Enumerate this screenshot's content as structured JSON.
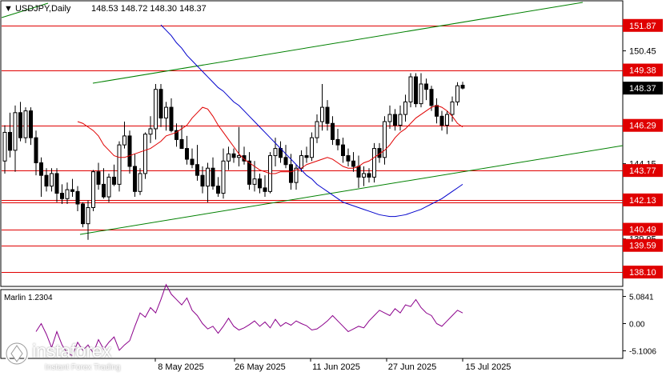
{
  "header": {
    "symbol": "USDJPY,Daily",
    "ohlc": "148.53 148.72 148.30 148.37"
  },
  "indicator": {
    "label": "Marlin 1.2304"
  },
  "price_axis_labels": [
    "151.87",
    "150.45",
    "149.38",
    "148.37",
    "146.29",
    "144.15",
    "143.77",
    "142.13",
    "140.49",
    "139.95",
    "139.59",
    "138.10"
  ],
  "indicator_axis_labels": [
    "5.0841",
    "0.00",
    "-5.1006"
  ],
  "time_axis_labels": [
    "8 May 2025",
    "26 May 2025",
    "11 Jun 2025",
    "27 Jun 2025",
    "15 Jul 2025"
  ],
  "logo": {
    "name": "instaforex",
    "tagline": "Instant Forex Trading"
  },
  "colors": {
    "levels": "#e00000",
    "channel": "#008000",
    "ma_fast": "#e00000",
    "ma_slow": "#0000cc",
    "oscillator": "#8b008b",
    "bull": "#ffffff",
    "bear": "#000000",
    "current_price_box": "#000000"
  },
  "chart_data": {
    "type": "candlestick",
    "symbol": "USDJPY",
    "timeframe": "Daily",
    "y_range": [
      137.3,
      153.2
    ],
    "horizontal_levels": [
      151.87,
      149.38,
      146.29,
      143.77,
      142.13,
      142.0,
      140.49,
      139.59,
      138.1
    ],
    "current_price": 148.37,
    "candles": [
      [
        144.3,
        146.3,
        143.6,
        145.9
      ],
      [
        145.9,
        147.0,
        144.5,
        144.9
      ],
      [
        144.9,
        147.4,
        143.7,
        147.0
      ],
      [
        147.0,
        147.6,
        145.4,
        145.6
      ],
      [
        145.6,
        147.3,
        145.3,
        147.1
      ],
      [
        147.1,
        147.3,
        145.2,
        145.6
      ],
      [
        145.6,
        146.0,
        143.5,
        144.2
      ],
      [
        144.2,
        144.5,
        142.3,
        143.5
      ],
      [
        143.5,
        143.9,
        142.6,
        142.9
      ],
      [
        142.9,
        143.9,
        142.6,
        143.6
      ],
      [
        143.6,
        143.9,
        142.0,
        142.5
      ],
      [
        142.5,
        143.0,
        141.9,
        142.2
      ],
      [
        142.2,
        143.1,
        141.9,
        142.7
      ],
      [
        142.7,
        143.3,
        142.3,
        142.6
      ],
      [
        142.6,
        142.9,
        141.5,
        141.9
      ],
      [
        141.9,
        142.0,
        140.6,
        140.8
      ],
      [
        140.8,
        142.1,
        139.9,
        141.7
      ],
      [
        141.7,
        143.8,
        141.5,
        143.7
      ],
      [
        143.7,
        144.2,
        142.7,
        143.0
      ],
      [
        143.0,
        143.9,
        142.2,
        142.3
      ],
      [
        142.3,
        143.6,
        142.0,
        143.4
      ],
      [
        143.4,
        144.1,
        142.9,
        143.0
      ],
      [
        143.0,
        145.4,
        142.6,
        145.2
      ],
      [
        145.2,
        146.5,
        145.0,
        145.7
      ],
      [
        145.7,
        146.0,
        143.6,
        144.0
      ],
      [
        144.0,
        144.7,
        142.3,
        142.6
      ],
      [
        142.6,
        143.9,
        142.4,
        143.6
      ],
      [
        143.6,
        145.9,
        143.3,
        145.8
      ],
      [
        145.8,
        146.8,
        145.3,
        146.1
      ],
      [
        146.1,
        148.6,
        145.5,
        148.3
      ],
      [
        148.3,
        148.6,
        146.2,
        146.7
      ],
      [
        146.7,
        147.6,
        146.0,
        147.3
      ],
      [
        147.3,
        147.8,
        145.9,
        146.0
      ],
      [
        146.0,
        146.4,
        145.1,
        145.5
      ],
      [
        145.5,
        146.3,
        145.0,
        145.0
      ],
      [
        145.0,
        145.7,
        144.1,
        144.4
      ],
      [
        144.4,
        145.0,
        143.9,
        144.1
      ],
      [
        144.1,
        145.2,
        143.2,
        143.5
      ],
      [
        143.5,
        144.0,
        142.5,
        142.9
      ],
      [
        142.9,
        144.2,
        142.0,
        143.9
      ],
      [
        143.9,
        144.5,
        142.7,
        142.9
      ],
      [
        142.9,
        143.4,
        142.3,
        142.5
      ],
      [
        142.5,
        145.0,
        142.2,
        144.3
      ],
      [
        144.3,
        145.1,
        143.8,
        144.7
      ],
      [
        144.7,
        145.0,
        144.2,
        144.5
      ],
      [
        144.5,
        146.2,
        144.0,
        144.6
      ],
      [
        144.6,
        145.1,
        144.1,
        144.3
      ],
      [
        144.3,
        144.8,
        142.7,
        143.0
      ],
      [
        143.0,
        144.3,
        142.6,
        143.3
      ],
      [
        143.3,
        143.6,
        142.5,
        142.8
      ],
      [
        142.8,
        143.5,
        142.3,
        142.6
      ],
      [
        142.6,
        144.8,
        142.5,
        144.6
      ],
      [
        144.6,
        145.6,
        144.0,
        145.0
      ],
      [
        145.0,
        145.4,
        144.2,
        144.5
      ],
      [
        144.5,
        145.2,
        143.9,
        144.1
      ],
      [
        144.1,
        144.7,
        142.7,
        143.1
      ],
      [
        143.1,
        144.1,
        142.7,
        143.9
      ],
      [
        143.9,
        144.9,
        143.7,
        144.6
      ],
      [
        144.6,
        145.1,
        144.2,
        144.5
      ],
      [
        144.5,
        145.9,
        144.3,
        145.6
      ],
      [
        145.6,
        146.9,
        145.3,
        146.5
      ],
      [
        146.5,
        148.6,
        146.0,
        147.3
      ],
      [
        147.3,
        147.7,
        146.0,
        146.4
      ],
      [
        146.4,
        146.8,
        145.2,
        145.5
      ],
      [
        145.5,
        146.1,
        144.9,
        145.2
      ],
      [
        145.2,
        145.6,
        144.2,
        144.6
      ],
      [
        144.6,
        145.0,
        144.0,
        144.3
      ],
      [
        144.3,
        144.8,
        143.7,
        144.0
      ],
      [
        144.0,
        144.6,
        142.8,
        143.4
      ],
      [
        143.4,
        144.0,
        142.9,
        143.6
      ],
      [
        143.6,
        143.9,
        143.1,
        143.4
      ],
      [
        143.4,
        145.3,
        143.1,
        145.0
      ],
      [
        145.0,
        145.3,
        144.2,
        144.5
      ],
      [
        144.5,
        146.8,
        144.1,
        146.5
      ],
      [
        146.5,
        147.4,
        146.1,
        146.9
      ],
      [
        146.9,
        147.2,
        146.0,
        146.3
      ],
      [
        146.3,
        147.4,
        146.0,
        146.9
      ],
      [
        146.9,
        148.0,
        146.5,
        147.6
      ],
      [
        147.6,
        149.2,
        147.3,
        149.0
      ],
      [
        149.0,
        149.2,
        147.3,
        147.5
      ],
      [
        147.5,
        149.2,
        147.3,
        148.6
      ],
      [
        148.6,
        148.9,
        147.7,
        148.3
      ],
      [
        148.3,
        148.5,
        147.1,
        147.4
      ],
      [
        147.4,
        147.8,
        146.4,
        146.8
      ],
      [
        146.8,
        147.1,
        146.0,
        146.3
      ],
      [
        146.3,
        147.1,
        145.8,
        146.9
      ],
      [
        146.9,
        147.9,
        146.5,
        147.6
      ],
      [
        147.6,
        148.7,
        147.4,
        148.5
      ],
      [
        148.53,
        148.72,
        148.3,
        148.37
      ]
    ],
    "ma_fast": [
      146.5,
      146.4,
      146.2,
      146.0,
      145.7,
      145.2,
      144.9,
      144.6,
      144.5,
      144.5,
      144.6,
      144.7,
      144.8,
      144.9,
      145.0,
      145.2,
      145.4,
      145.7,
      145.8,
      145.9,
      146.1,
      146.3,
      146.7,
      147.0,
      147.3,
      147.2,
      146.8,
      146.3,
      145.9,
      145.5,
      145.1,
      144.7,
      144.4,
      144.2,
      144.0,
      143.8,
      143.7,
      143.6,
      143.6,
      143.7,
      143.7,
      143.7,
      143.8,
      143.9,
      144.1,
      144.2,
      144.3,
      144.4,
      144.5,
      144.4,
      144.2,
      144.0,
      143.9,
      143.9,
      144.0,
      144.2,
      144.3,
      144.5,
      144.7,
      144.9,
      145.2,
      145.6,
      145.9,
      146.1,
      146.4,
      146.7,
      146.9,
      147.1,
      147.3,
      147.4,
      147.3,
      147.1,
      146.8,
      146.4,
      146.2
    ],
    "ma_slow": [
      151.9,
      151.6,
      151.3,
      150.9,
      150.6,
      150.2,
      149.9,
      149.6,
      149.3,
      149.0,
      148.7,
      148.4,
      148.2,
      147.9,
      147.6,
      147.4,
      147.1,
      146.8,
      146.5,
      146.2,
      145.9,
      145.6,
      145.3,
      145.0,
      144.7,
      144.4,
      144.1,
      143.8,
      143.5,
      143.3,
      143.0,
      142.8,
      142.6,
      142.4,
      142.2,
      142.0,
      141.9,
      141.8,
      141.7,
      141.6,
      141.5,
      141.4,
      141.3,
      141.25,
      141.2,
      141.2,
      141.25,
      141.3,
      141.4,
      141.5,
      141.6,
      141.75,
      141.9,
      142.05,
      142.2,
      142.4,
      142.6,
      142.8,
      143.0
    ],
    "channel": {
      "upper": [
        [
          116,
          104
        ],
        [
          728,
          3
        ]
      ],
      "lower": [
        [
          100,
          293
        ],
        [
          778,
          182
        ]
      ],
      "extra": [
        [
          2,
          22
        ],
        [
          60,
          4
        ]
      ]
    },
    "oscillator": {
      "name": "Marlin",
      "value": 1.2304,
      "ylim": [
        -5.1006,
        5.0841
      ],
      "values": [
        -1.5,
        0.0,
        -2.0,
        -4.5,
        -1.5,
        -4.0,
        -5.5,
        -6.0,
        -3.5,
        -5.0,
        -4.0,
        -5.5,
        -3.0,
        -4.8,
        -3.5,
        -2.5,
        -5.0,
        -4.0,
        -3.2,
        -0.5,
        2.0,
        1.2,
        3.0,
        2.0,
        4.5,
        7.3,
        5.5,
        4.5,
        3.5,
        4.8,
        2.5,
        1.5,
        0.0,
        -1.0,
        -0.5,
        -1.8,
        -0.5,
        1.0,
        -0.5,
        -1.2,
        -0.8,
        -0.2,
        0.5,
        -0.5,
        0.3,
        -0.8,
        0.8,
        -0.5,
        0.2,
        -0.3,
        0.5,
        0.0,
        -0.4,
        -1.2,
        -1.0,
        -0.3,
        0.5,
        1.5,
        0.5,
        -0.5,
        -1.5,
        -1.0,
        -0.5,
        -0.8,
        0.5,
        1.5,
        2.5,
        2.0,
        1.5,
        2.8,
        2.0,
        3.5,
        3.2,
        4.5,
        3.0,
        2.0,
        1.5,
        0.0,
        -0.5,
        0.5,
        1.5,
        2.5,
        2.0
      ]
    }
  }
}
